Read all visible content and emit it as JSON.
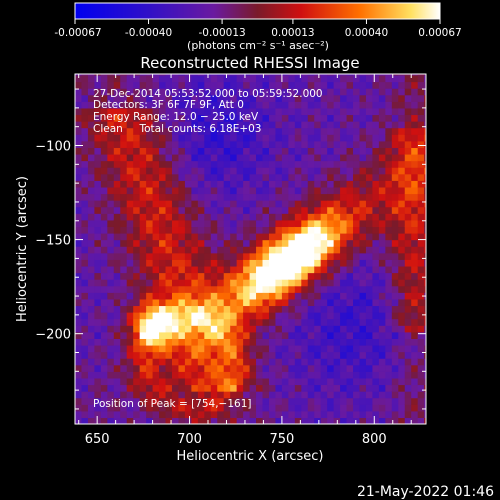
{
  "chart_data": {
    "type": "heatmap",
    "title": "Reconstructed RHESSI Image",
    "xlabel": "Heliocentric X (arcsec)",
    "ylabel": "Heliocentric Y (arcsec)",
    "xlim": [
      638,
      828
    ],
    "ylim": [
      -248,
      -62
    ],
    "xticks": [
      650,
      700,
      750,
      800
    ],
    "xtick_labels": [
      "650",
      "700",
      "750",
      "800"
    ],
    "yticks": [
      -100,
      -150,
      -200
    ],
    "ytick_labels": [
      "−100",
      "−150",
      "−200"
    ],
    "colorbar": {
      "ticks": [
        -0.00067,
        -0.0004,
        -0.00013,
        0.00013,
        0.0004,
        0.00067
      ],
      "tick_labels": [
        "-0.00067",
        "-0.00040",
        "-0.00013",
        "0.00013",
        "0.00040",
        "0.00067"
      ],
      "units": "(photons cm⁻² s⁻¹ asec⁻²)",
      "range": [
        -0.00067,
        0.00067
      ],
      "colormap": "blue-purple-red-yellow-white"
    },
    "annotations": [
      "27-Dec-2014 05:53:52.000 to 05:59:52.000",
      "Detectors: 3F 6F 7F 9F, Att 0",
      "Energy Range: 12.0 − 25.0 keV",
      "Clean     Total counts: 6.18E+03"
    ],
    "peak_label": "Position of Peak = [754,−161]",
    "peak": [
      754,
      -161
    ],
    "sources": [
      {
        "x": 754,
        "y": -161,
        "intensity": 0.00067
      },
      {
        "x": 680,
        "y": -195,
        "intensity": 0.00055
      },
      {
        "x": 660,
        "y": -110,
        "intensity": 0.00025
      }
    ]
  },
  "footer": {
    "timestamp": "21-May-2022 01:46"
  }
}
